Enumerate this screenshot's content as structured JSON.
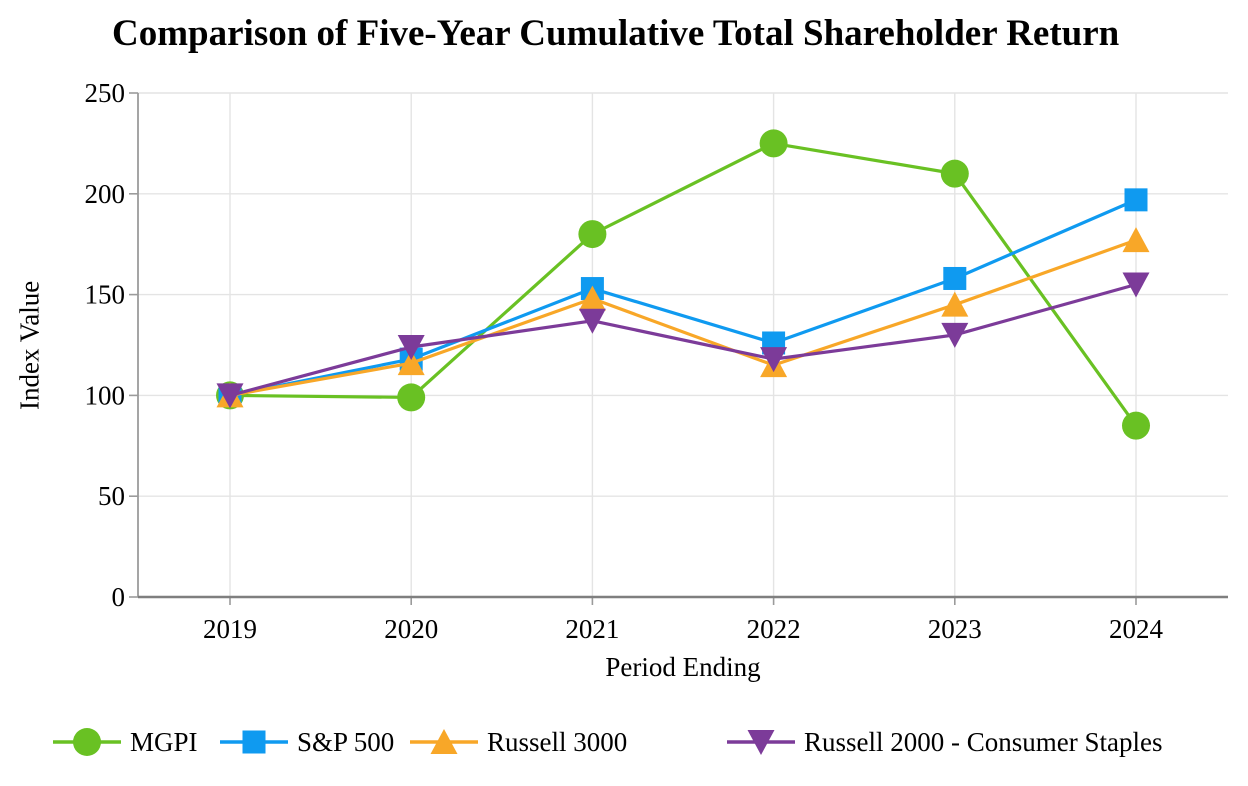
{
  "title": "Comparison of Five-Year Cumulative Total Shareholder Return",
  "chart_data": {
    "type": "line",
    "title": "Comparison of Five-Year Cumulative Total Shareholder Return",
    "xlabel": "Period Ending",
    "ylabel": "Index Value",
    "categories": [
      "2019",
      "2020",
      "2021",
      "2022",
      "2023",
      "2024"
    ],
    "ylim": [
      0,
      250
    ],
    "yticks": [
      0,
      50,
      100,
      150,
      200,
      250
    ],
    "grid": true,
    "legend_position": "bottom",
    "series": [
      {
        "name": "MGPI",
        "marker": "circle",
        "color": "#69C123",
        "values": [
          100,
          99,
          180,
          225,
          210,
          85
        ]
      },
      {
        "name": "S&P 500",
        "marker": "square",
        "color": "#0F9AF0",
        "values": [
          100,
          118,
          153,
          126,
          158,
          197
        ]
      },
      {
        "name": "Russell 3000",
        "marker": "triangle-up",
        "color": "#F8A728",
        "values": [
          100,
          116,
          148,
          115,
          145,
          177
        ]
      },
      {
        "name": "Russell 2000 - Consumer Staples",
        "marker": "triangle-down",
        "color": "#7C3B99",
        "values": [
          100,
          124,
          137,
          118,
          130,
          155
        ]
      }
    ]
  },
  "colors": {
    "background": "#FFFFFF",
    "gridline": "#E4E4E4",
    "axis_line": "#9B9B9B",
    "bottom_axis_line": "#7F7F7F",
    "text": "#000000"
  }
}
